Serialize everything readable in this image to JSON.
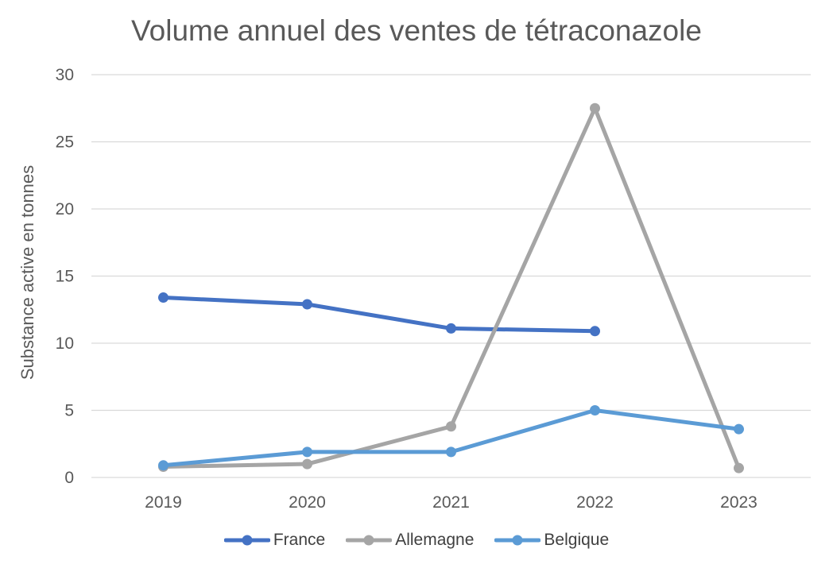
{
  "chart_data": {
    "type": "line",
    "title": "Volume annuel des ventes de tétraconazole",
    "xlabel": "",
    "ylabel": "Substance active en tonnes",
    "categories": [
      "2019",
      "2020",
      "2021",
      "2022",
      "2023"
    ],
    "ylim": [
      0,
      30
    ],
    "yticks": [
      0,
      5,
      10,
      15,
      20,
      25,
      30
    ],
    "grid": true,
    "legend_position": "bottom",
    "series": [
      {
        "name": "France",
        "color": "#4472C4",
        "values": [
          13.4,
          12.9,
          11.1,
          10.9,
          null
        ]
      },
      {
        "name": "Allemagne",
        "color": "#A5A5A5",
        "values": [
          0.8,
          1.0,
          3.8,
          27.5,
          0.7
        ]
      },
      {
        "name": "Belgique",
        "color": "#5B9BD5",
        "values": [
          0.9,
          1.9,
          1.9,
          5.0,
          3.6
        ]
      }
    ]
  }
}
